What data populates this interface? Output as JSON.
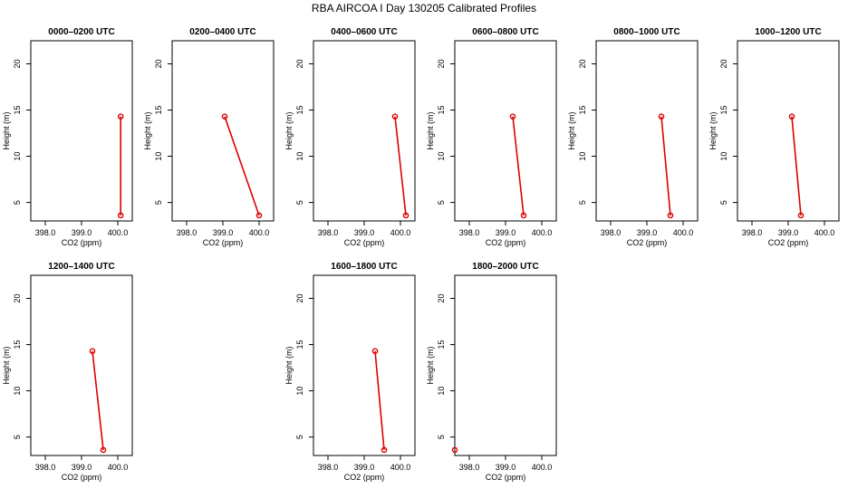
{
  "title": "RBA AIRCOA I  Day 130205  Calibrated Profiles",
  "colors": {
    "series": "#dd0000",
    "axis": "#000000",
    "background": "#ffffff"
  },
  "chart_data": [
    {
      "type": "line",
      "title": "0000–0200 UTC",
      "xlabel": "CO2 (ppm)",
      "ylabel": "Height (m)",
      "xlim": [
        397.6,
        400.4
      ],
      "ylim": [
        3,
        22.5
      ],
      "xticks": [
        "398.0",
        "399.0",
        "400.0"
      ],
      "yticks": [
        "5",
        "10",
        "15",
        "20"
      ],
      "x": [
        400.08,
        400.08
      ],
      "y": [
        14.3,
        3.6
      ]
    },
    {
      "type": "line",
      "title": "0200–0400 UTC",
      "xlabel": "CO2 (ppm)",
      "ylabel": "Height (m)",
      "xlim": [
        397.6,
        400.4
      ],
      "ylim": [
        3,
        22.5
      ],
      "xticks": [
        "398.0",
        "399.0",
        "400.0"
      ],
      "yticks": [
        "5",
        "10",
        "15",
        "20"
      ],
      "x": [
        399.05,
        400.0
      ],
      "y": [
        14.3,
        3.6
      ]
    },
    {
      "type": "line",
      "title": "0400–0600 UTC",
      "xlabel": "CO2 (ppm)",
      "ylabel": "Height (m)",
      "xlim": [
        397.6,
        400.4
      ],
      "ylim": [
        3,
        22.5
      ],
      "xticks": [
        "398.0",
        "399.0",
        "400.0"
      ],
      "yticks": [
        "5",
        "10",
        "15",
        "20"
      ],
      "x": [
        399.85,
        400.15
      ],
      "y": [
        14.3,
        3.6
      ]
    },
    {
      "type": "line",
      "title": "0600–0800 UTC",
      "xlabel": "CO2 (ppm)",
      "ylabel": "Height (m)",
      "xlim": [
        397.6,
        400.4
      ],
      "ylim": [
        3,
        22.5
      ],
      "xticks": [
        "398.0",
        "399.0",
        "400.0"
      ],
      "yticks": [
        "5",
        "10",
        "15",
        "20"
      ],
      "x": [
        399.2,
        399.5
      ],
      "y": [
        14.3,
        3.6
      ]
    },
    {
      "type": "line",
      "title": "0800–1000 UTC",
      "xlabel": "CO2 (ppm)",
      "ylabel": "Height (m)",
      "xlim": [
        397.6,
        400.4
      ],
      "ylim": [
        3,
        22.5
      ],
      "xticks": [
        "398.0",
        "399.0",
        "400.0"
      ],
      "yticks": [
        "5",
        "10",
        "15",
        "20"
      ],
      "x": [
        399.4,
        399.65
      ],
      "y": [
        14.3,
        3.6
      ]
    },
    {
      "type": "line",
      "title": "1000–1200 UTC",
      "xlabel": "CO2 (ppm)",
      "ylabel": "Height (m)",
      "xlim": [
        397.6,
        400.4
      ],
      "ylim": [
        3,
        22.5
      ],
      "xticks": [
        "398.0",
        "399.0",
        "400.0"
      ],
      "yticks": [
        "5",
        "10",
        "15",
        "20"
      ],
      "x": [
        399.1,
        399.35
      ],
      "y": [
        14.3,
        3.6
      ]
    },
    {
      "type": "line",
      "title": "1200–1400 UTC",
      "xlabel": "CO2 (ppm)",
      "ylabel": "Height (m)",
      "xlim": [
        397.6,
        400.4
      ],
      "ylim": [
        3,
        22.5
      ],
      "xticks": [
        "398.0",
        "399.0",
        "400.0"
      ],
      "yticks": [
        "5",
        "10",
        "15",
        "20"
      ],
      "x": [
        399.3,
        399.6
      ],
      "y": [
        14.3,
        3.6
      ]
    },
    {
      "type": "line",
      "title": "1600–1800 UTC",
      "xlabel": "CO2 (ppm)",
      "ylabel": "Height (m)",
      "xlim": [
        397.6,
        400.4
      ],
      "ylim": [
        3,
        22.5
      ],
      "xticks": [
        "398.0",
        "399.0",
        "400.0"
      ],
      "yticks": [
        "5",
        "10",
        "15",
        "20"
      ],
      "x": [
        399.3,
        399.55
      ],
      "y": [
        14.3,
        3.6
      ]
    },
    {
      "type": "line",
      "title": "1800–2000 UTC",
      "xlabel": "CO2 (ppm)",
      "ylabel": "Height (m)",
      "xlim": [
        397.6,
        400.4
      ],
      "ylim": [
        3,
        22.5
      ],
      "xticks": [
        "398.0",
        "399.0",
        "400.0"
      ],
      "yticks": [
        "5",
        "10",
        "15",
        "20"
      ],
      "x": [
        397.6
      ],
      "y": [
        3.6
      ]
    }
  ]
}
